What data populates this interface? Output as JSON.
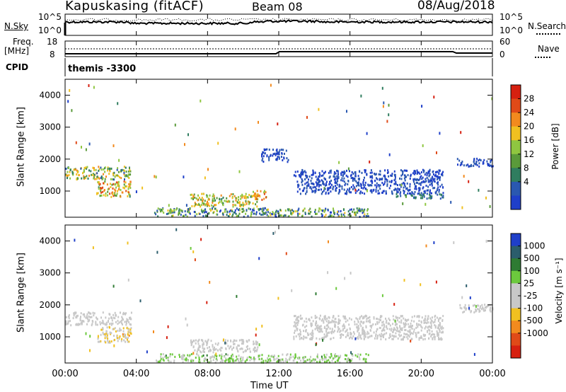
{
  "header": {
    "station": "Kapuskasing (fitACF)",
    "beam": "Beam 08",
    "date": "08/Aug/2018"
  },
  "top_panels": {
    "left_label": "N.Sky",
    "right_label": "N.Search",
    "noise_ticks_left": [
      "10^5",
      "10^0"
    ],
    "noise_ticks_right": [
      "10^5",
      "10^0"
    ],
    "freq_label_1": "Freq.",
    "freq_label_2": "[MHz]",
    "freq_ticks": [
      "18",
      "8"
    ],
    "nave_label": "Nave",
    "nave_ticks": [
      "60",
      "0"
    ],
    "cpid_label": "CPID",
    "cpid_text": "themis -3300"
  },
  "x_axis": {
    "title": "Time UT",
    "tick_labels": [
      "00:00",
      "04:00",
      "08:00",
      "12:00",
      "16:00",
      "20:00",
      "00:00"
    ]
  },
  "colors": {
    "power_scale": [
      "#1f3fc9",
      "#2a58b0",
      "#2f7d5f",
      "#5a9a3a",
      "#8fc640",
      "#f0c020",
      "#f28a1e",
      "#e04a18",
      "#d62010"
    ],
    "velocity_scale": [
      "#1f3fc9",
      "#2b5d6c",
      "#2e7b33",
      "#6cc93d",
      "#c8c8c8",
      "#c8c8c8",
      "#f0c020",
      "#f28a1e",
      "#e04a18",
      "#d62010"
    ]
  },
  "chart_data": [
    {
      "type": "heatmap",
      "title": "",
      "xlabel": "Time UT",
      "ylabel": "Slant Range [km]",
      "colorbar_label": "Power [dB]",
      "colorbar_ticks": [
        "28",
        "24",
        "20",
        "16",
        "12",
        "8",
        "4"
      ],
      "xlim_hours": [
        0,
        24
      ],
      "ylim_km": [
        180,
        4500
      ],
      "y_ticks": [
        "4000",
        "3000",
        "2000",
        "1000"
      ],
      "clusters": [
        {
          "t0": 0.0,
          "t1": 3.7,
          "r0": 1350,
          "r1": 1750,
          "power": [
            8,
            24
          ]
        },
        {
          "t0": 1.8,
          "t1": 3.7,
          "r0": 800,
          "r1": 1300,
          "power": [
            12,
            28
          ]
        },
        {
          "t0": 7.0,
          "t1": 10.8,
          "r0": 500,
          "r1": 900,
          "power": [
            12,
            24
          ]
        },
        {
          "t0": 10.5,
          "t1": 11.3,
          "r0": 700,
          "r1": 1000,
          "power": [
            16,
            28
          ]
        },
        {
          "t0": 5.0,
          "t1": 17.0,
          "r0": 180,
          "r1": 450,
          "power": [
            4,
            20
          ]
        },
        {
          "t0": 11.0,
          "t1": 12.5,
          "r0": 1900,
          "r1": 2300,
          "power": [
            4,
            8
          ]
        },
        {
          "t0": 12.8,
          "t1": 21.2,
          "r0": 1300,
          "r1": 1650,
          "power": [
            4,
            8
          ]
        },
        {
          "t0": 13.0,
          "t1": 21.2,
          "r0": 900,
          "r1": 1300,
          "power": [
            4,
            8
          ]
        },
        {
          "t0": 22.0,
          "t1": 24.0,
          "r0": 1750,
          "r1": 2000,
          "power": [
            4,
            8
          ]
        },
        {
          "t0": 18.5,
          "t1": 21.2,
          "r0": 750,
          "r1": 900,
          "power": [
            8,
            12
          ]
        }
      ]
    },
    {
      "type": "heatmap",
      "title": "",
      "xlabel": "Time UT",
      "ylabel": "Slant Range [km]",
      "colorbar_label": "Velocity [m s⁻¹]",
      "colorbar_ticks": [
        "1000",
        "500",
        "100",
        "25",
        "-25",
        "-100",
        "-500",
        "-1000"
      ],
      "xlim_hours": [
        0,
        24
      ],
      "ylim_km": [
        180,
        4500
      ],
      "y_ticks": [
        "4000",
        "3000",
        "2000",
        "1000"
      ],
      "clusters": [
        {
          "t0": 0.0,
          "t1": 3.7,
          "r0": 1350,
          "r1": 1750,
          "velocity": [
            -25,
            25
          ]
        },
        {
          "t0": 1.8,
          "t1": 3.7,
          "r0": 800,
          "r1": 1300,
          "velocity": [
            -500,
            100
          ]
        },
        {
          "t0": 7.0,
          "t1": 10.8,
          "r0": 500,
          "r1": 900,
          "velocity": [
            -100,
            100
          ]
        },
        {
          "t0": 5.0,
          "t1": 17.0,
          "r0": 180,
          "r1": 450,
          "velocity": [
            25,
            500
          ]
        },
        {
          "t0": 12.8,
          "t1": 21.2,
          "r0": 900,
          "r1": 1650,
          "velocity": [
            -25,
            25
          ]
        },
        {
          "t0": 22.0,
          "t1": 24.0,
          "r0": 1750,
          "r1": 2000,
          "velocity": [
            -25,
            25
          ]
        }
      ]
    }
  ]
}
